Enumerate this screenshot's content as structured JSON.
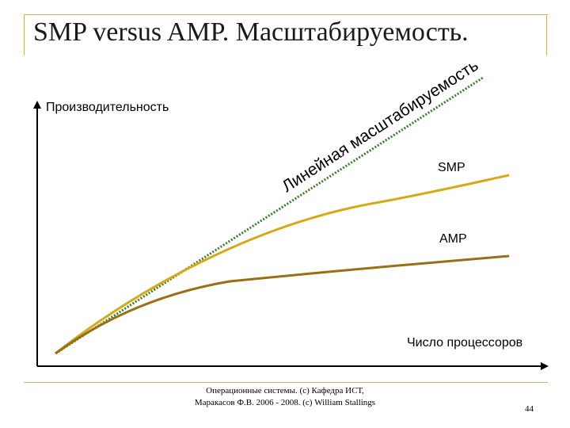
{
  "slide": {
    "title": "SMP versus AMP. Масштабируемость.",
    "footer": "Операционные системы. (c) Кафедра ИСТ, Маракасов Ф.В. 2006 - 2008. (c) William Stallings",
    "page_number": "44"
  },
  "diagram": {
    "y_axis_label": "Производительность",
    "x_axis_label": "Число процессоров",
    "curves": [
      {
        "label": "Линейная масштабируемость",
        "color": "#3b7d2c",
        "style": "dotted"
      },
      {
        "label": "SMP",
        "color": "#d4aa18",
        "style": "solid"
      },
      {
        "label": "AMP",
        "color": "#9a6f14",
        "style": "solid"
      }
    ]
  }
}
